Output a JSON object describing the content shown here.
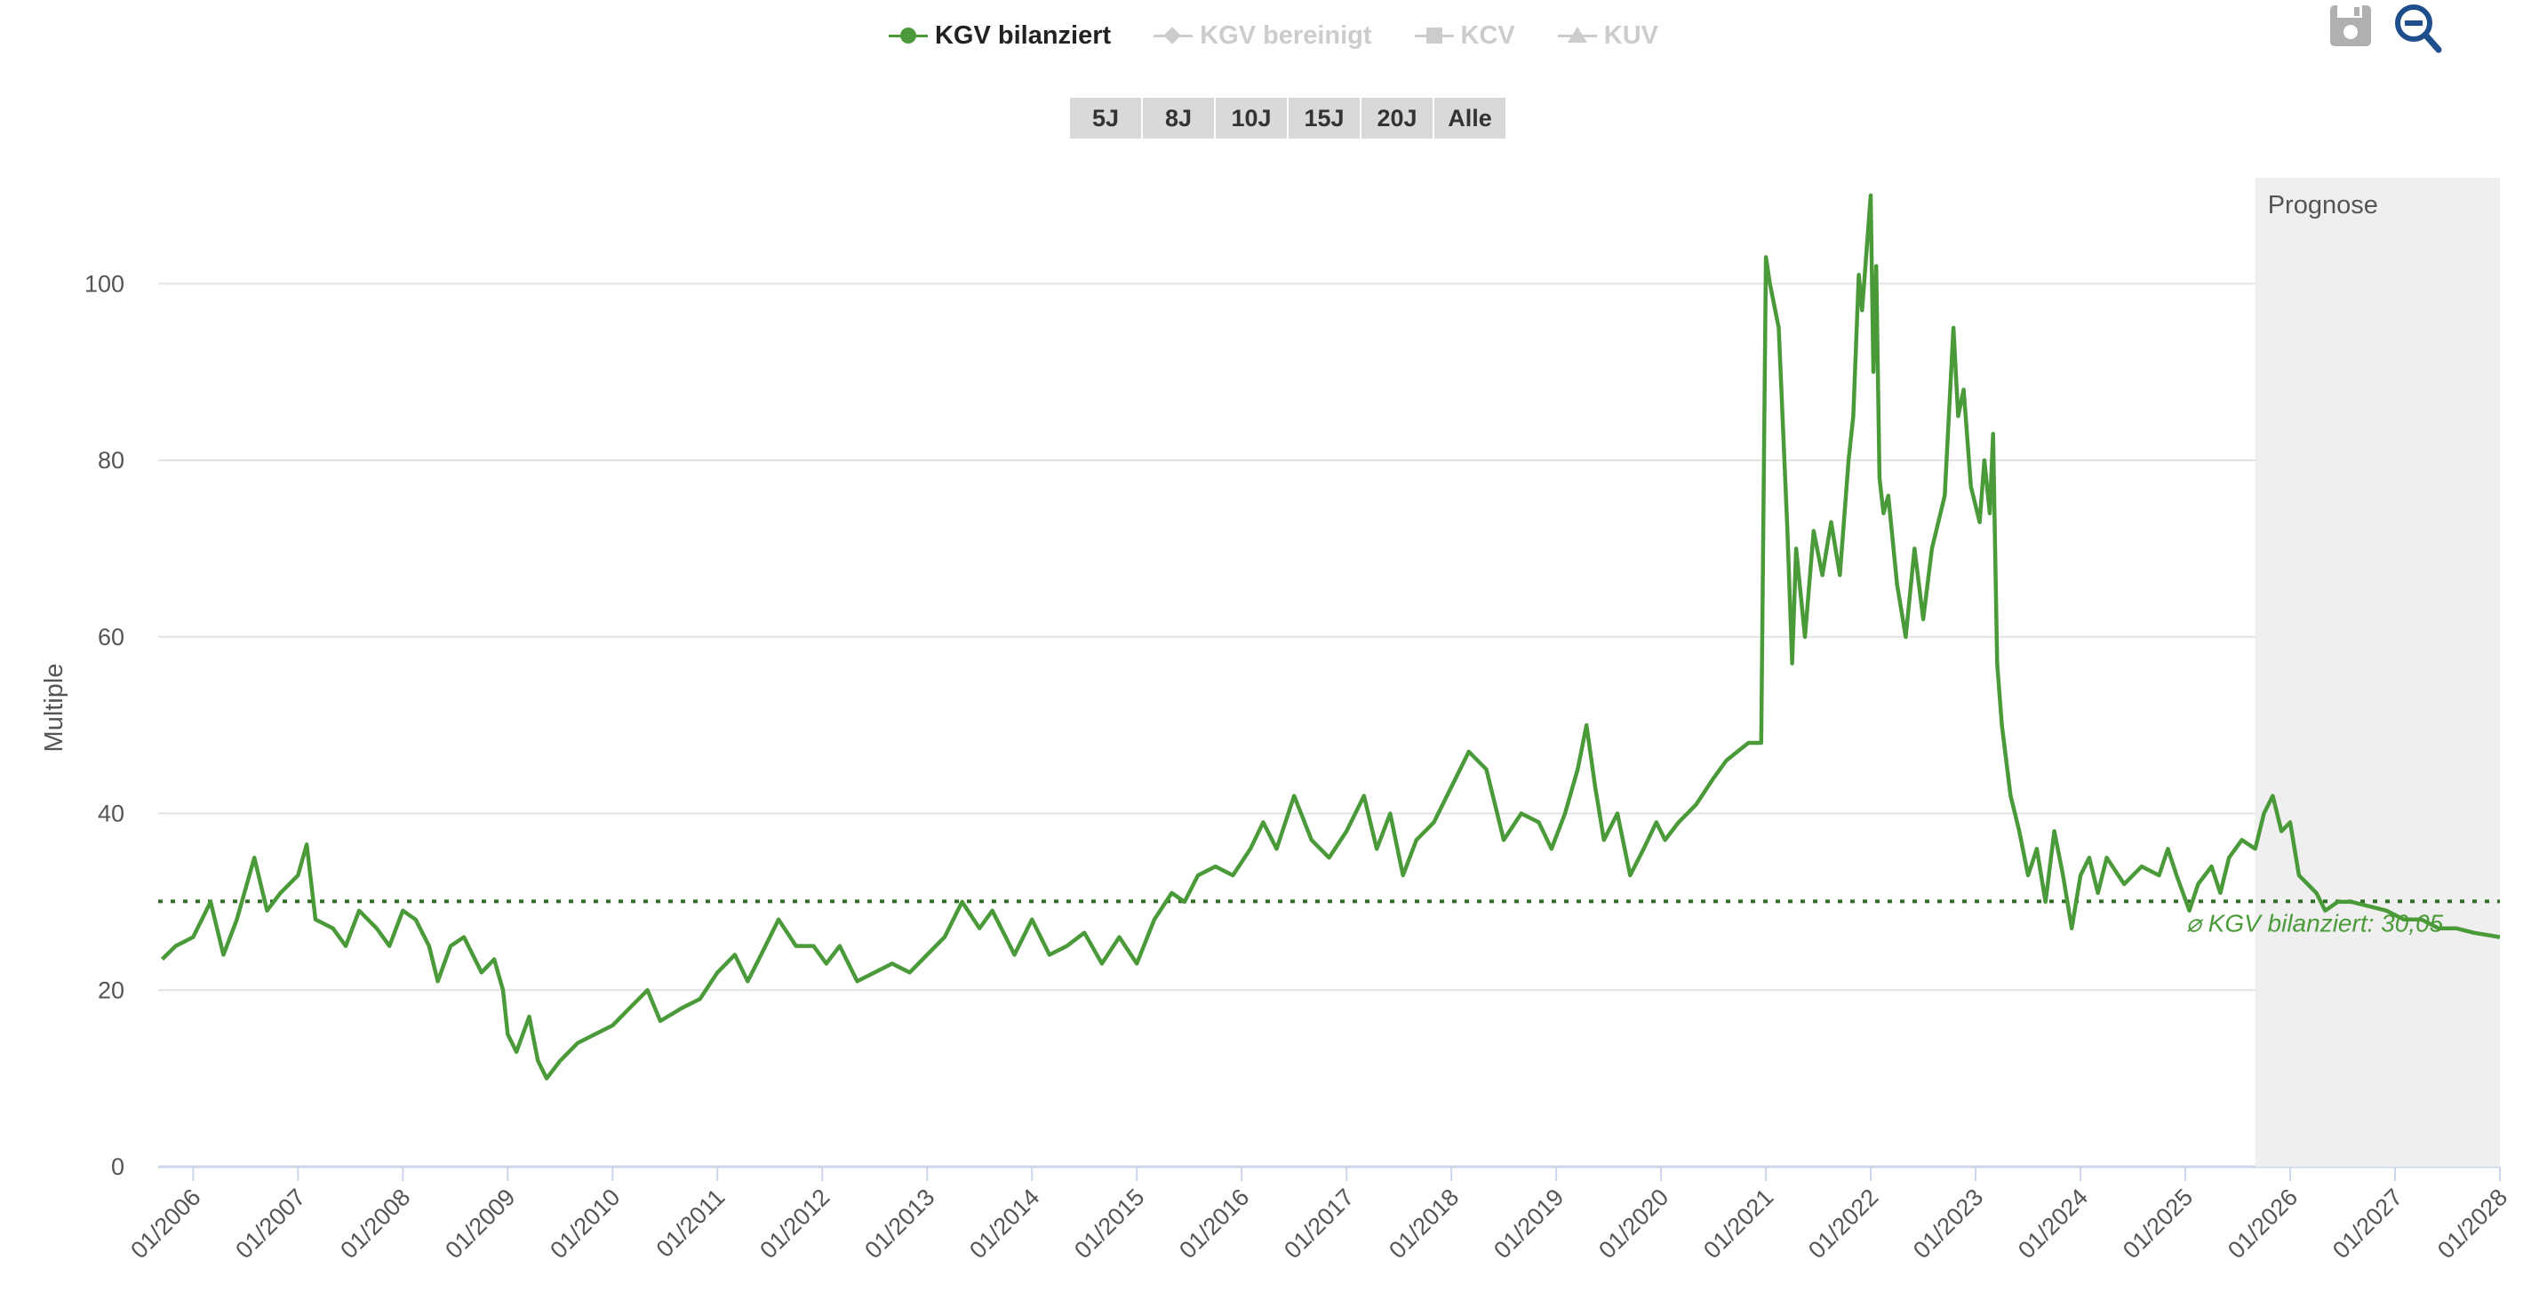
{
  "legend": {
    "items": [
      {
        "label": "KGV bilanziert",
        "active": true,
        "symbol": "circle"
      },
      {
        "label": "KGV bereinigt",
        "active": false,
        "symbol": "diamond"
      },
      {
        "label": "KCV",
        "active": false,
        "symbol": "square"
      },
      {
        "label": "KUV",
        "active": false,
        "symbol": "triangle"
      }
    ]
  },
  "range_buttons": [
    "5J",
    "8J",
    "10J",
    "15J",
    "20J",
    "Alle"
  ],
  "tools": {
    "save_icon": "floppy-disk-icon",
    "zoom_out_icon": "zoom-out-magnifier-icon"
  },
  "colors": {
    "series": "#4a9a3a",
    "forecast_band": "#efefef",
    "grid": "#e3e3e3",
    "active_icon": "#1f4e8c",
    "inactive_icon": "#b0b0b0"
  },
  "chart_data": {
    "type": "line",
    "ylabel": "Multiple",
    "ylim": [
      0,
      112
    ],
    "yticks": [
      0,
      20,
      40,
      60,
      80,
      100
    ],
    "xlim": [
      "2005-09",
      "2028-01"
    ],
    "xticks": [
      "01/2006",
      "01/2007",
      "01/2008",
      "01/2009",
      "01/2010",
      "01/2011",
      "01/2012",
      "01/2013",
      "01/2014",
      "01/2015",
      "01/2016",
      "01/2017",
      "01/2018",
      "01/2019",
      "01/2020",
      "01/2021",
      "01/2022",
      "01/2023",
      "01/2024",
      "01/2025",
      "01/2026",
      "01/2027",
      "01/2028"
    ],
    "grid": true,
    "forecast": {
      "label": "Prognose",
      "start": "2025-09"
    },
    "average": {
      "label": "⌀ KGV bilanziert: 30,05",
      "value": 30.05
    },
    "series": [
      {
        "name": "KGV bilanziert",
        "points": [
          [
            "2005-09-15",
            23.5
          ],
          [
            "2005-11-01",
            25
          ],
          [
            "2006-01-01",
            26
          ],
          [
            "2006-03-01",
            30
          ],
          [
            "2006-04-15",
            24
          ],
          [
            "2006-06-01",
            28
          ],
          [
            "2006-08-01",
            35
          ],
          [
            "2006-09-15",
            29
          ],
          [
            "2006-11-01",
            31
          ],
          [
            "2007-01-01",
            33
          ],
          [
            "2007-02-01",
            36.5
          ],
          [
            "2007-03-01",
            28
          ],
          [
            "2007-05-01",
            27
          ],
          [
            "2007-06-15",
            25
          ],
          [
            "2007-08-01",
            29
          ],
          [
            "2007-10-01",
            27
          ],
          [
            "2007-11-15",
            25
          ],
          [
            "2008-01-01",
            29
          ],
          [
            "2008-02-15",
            28
          ],
          [
            "2008-04-01",
            25
          ],
          [
            "2008-05-01",
            21
          ],
          [
            "2008-06-15",
            25
          ],
          [
            "2008-08-01",
            26
          ],
          [
            "2008-10-01",
            22
          ],
          [
            "2008-11-15",
            23.5
          ],
          [
            "2008-12-15",
            20
          ],
          [
            "2009-01-01",
            15
          ],
          [
            "2009-02-01",
            13
          ],
          [
            "2009-03-15",
            17
          ],
          [
            "2009-04-15",
            12
          ],
          [
            "2009-05-15",
            10
          ],
          [
            "2009-07-01",
            12
          ],
          [
            "2009-09-01",
            14
          ],
          [
            "2009-11-01",
            15
          ],
          [
            "2010-01-01",
            16
          ],
          [
            "2010-03-01",
            18
          ],
          [
            "2010-05-01",
            20
          ],
          [
            "2010-06-15",
            16.5
          ],
          [
            "2010-09-01",
            18
          ],
          [
            "2010-11-01",
            19
          ],
          [
            "2011-01-01",
            22
          ],
          [
            "2011-03-01",
            24
          ],
          [
            "2011-04-15",
            21
          ],
          [
            "2011-06-01",
            24
          ],
          [
            "2011-08-01",
            28
          ],
          [
            "2011-10-01",
            25
          ],
          [
            "2011-12-01",
            25
          ],
          [
            "2012-01-15",
            23
          ],
          [
            "2012-03-01",
            25
          ],
          [
            "2012-05-01",
            21
          ],
          [
            "2012-07-01",
            22
          ],
          [
            "2012-09-01",
            23
          ],
          [
            "2012-11-01",
            22
          ],
          [
            "2013-01-01",
            24
          ],
          [
            "2013-03-01",
            26
          ],
          [
            "2013-05-01",
            30
          ],
          [
            "2013-07-01",
            27
          ],
          [
            "2013-08-15",
            29
          ],
          [
            "2013-10-01",
            26
          ],
          [
            "2013-11-01",
            24
          ],
          [
            "2014-01-01",
            28
          ],
          [
            "2014-03-01",
            24
          ],
          [
            "2014-05-01",
            25
          ],
          [
            "2014-07-01",
            26.5
          ],
          [
            "2014-09-01",
            23
          ],
          [
            "2014-11-01",
            26
          ],
          [
            "2015-01-01",
            23
          ],
          [
            "2015-03-01",
            28
          ],
          [
            "2015-05-01",
            31
          ],
          [
            "2015-06-15",
            30
          ],
          [
            "2015-08-01",
            33
          ],
          [
            "2015-10-01",
            34
          ],
          [
            "2015-12-01",
            33
          ],
          [
            "2016-02-01",
            36
          ],
          [
            "2016-03-15",
            39
          ],
          [
            "2016-05-01",
            36
          ],
          [
            "2016-07-01",
            42
          ],
          [
            "2016-09-01",
            37
          ],
          [
            "2016-11-01",
            35
          ],
          [
            "2017-01-01",
            38
          ],
          [
            "2017-03-01",
            42
          ],
          [
            "2017-04-15",
            36
          ],
          [
            "2017-06-01",
            40
          ],
          [
            "2017-07-15",
            33
          ],
          [
            "2017-09-01",
            37
          ],
          [
            "2017-11-01",
            39
          ],
          [
            "2018-01-01",
            43
          ],
          [
            "2018-03-01",
            47
          ],
          [
            "2018-05-01",
            45
          ],
          [
            "2018-07-01",
            37
          ],
          [
            "2018-09-01",
            40
          ],
          [
            "2018-11-01",
            39
          ],
          [
            "2018-12-15",
            36
          ],
          [
            "2019-02-01",
            40
          ],
          [
            "2019-03-15",
            45
          ],
          [
            "2019-04-15",
            50
          ],
          [
            "2019-05-15",
            43
          ],
          [
            "2019-06-15",
            37
          ],
          [
            "2019-08-01",
            40
          ],
          [
            "2019-09-15",
            33
          ],
          [
            "2019-11-01",
            36
          ],
          [
            "2019-12-15",
            39
          ],
          [
            "2020-01-15",
            37
          ],
          [
            "2020-03-01",
            39
          ],
          [
            "2020-05-01",
            41
          ],
          [
            "2020-07-01",
            44
          ],
          [
            "2020-08-15",
            46
          ],
          [
            "2020-11-01",
            48
          ],
          [
            "2020-12-15",
            48
          ],
          [
            "2021-01-01",
            103
          ],
          [
            "2021-01-15",
            100
          ],
          [
            "2021-02-15",
            95
          ],
          [
            "2021-03-15",
            72
          ],
          [
            "2021-04-01",
            57
          ],
          [
            "2021-04-15",
            70
          ],
          [
            "2021-05-15",
            60
          ],
          [
            "2021-06-15",
            72
          ],
          [
            "2021-07-15",
            67
          ],
          [
            "2021-08-15",
            73
          ],
          [
            "2021-09-15",
            67
          ],
          [
            "2021-10-15",
            80
          ],
          [
            "2021-11-01",
            85
          ],
          [
            "2021-11-20",
            101
          ],
          [
            "2021-12-01",
            97
          ],
          [
            "2021-12-15",
            103
          ],
          [
            "2021-12-31",
            110
          ],
          [
            "2022-01-10",
            90
          ],
          [
            "2022-01-20",
            102
          ],
          [
            "2022-02-01",
            78
          ],
          [
            "2022-02-15",
            74
          ],
          [
            "2022-03-01",
            76
          ],
          [
            "2022-04-01",
            66
          ],
          [
            "2022-05-01",
            60
          ],
          [
            "2022-06-01",
            70
          ],
          [
            "2022-07-01",
            62
          ],
          [
            "2022-08-01",
            70
          ],
          [
            "2022-09-15",
            76
          ],
          [
            "2022-10-15",
            95
          ],
          [
            "2022-11-01",
            85
          ],
          [
            "2022-11-20",
            88
          ],
          [
            "2022-12-15",
            77
          ],
          [
            "2023-01-15",
            73
          ],
          [
            "2023-02-01",
            80
          ],
          [
            "2023-02-20",
            74
          ],
          [
            "2023-03-01",
            83
          ],
          [
            "2023-03-15",
            57
          ],
          [
            "2023-04-01",
            50
          ],
          [
            "2023-05-01",
            42
          ],
          [
            "2023-06-01",
            38
          ],
          [
            "2023-07-01",
            33
          ],
          [
            "2023-08-01",
            36
          ],
          [
            "2023-09-01",
            30
          ],
          [
            "2023-10-01",
            38
          ],
          [
            "2023-11-01",
            33
          ],
          [
            "2023-12-01",
            27
          ],
          [
            "2024-01-01",
            33
          ],
          [
            "2024-02-01",
            35
          ],
          [
            "2024-03-01",
            31
          ],
          [
            "2024-04-01",
            35
          ],
          [
            "2024-06-01",
            32
          ],
          [
            "2024-08-01",
            34
          ],
          [
            "2024-10-01",
            33
          ],
          [
            "2024-11-01",
            36
          ],
          [
            "2024-12-01",
            33
          ],
          [
            "2025-01-15",
            29
          ],
          [
            "2025-02-15",
            32
          ],
          [
            "2025-04-01",
            34
          ],
          [
            "2025-05-01",
            31
          ],
          [
            "2025-06-01",
            35
          ],
          [
            "2025-07-15",
            37
          ],
          [
            "2025-09-01",
            36
          ],
          [
            "2025-10-01",
            40
          ],
          [
            "2025-11-01",
            42
          ],
          [
            "2025-12-01",
            38
          ],
          [
            "2026-01-01",
            39
          ],
          [
            "2026-02-01",
            33
          ],
          [
            "2026-03-01",
            32
          ],
          [
            "2026-04-01",
            31
          ],
          [
            "2026-05-01",
            29
          ],
          [
            "2026-06-15",
            30
          ],
          [
            "2026-08-01",
            30
          ],
          [
            "2026-10-01",
            29.5
          ],
          [
            "2026-12-01",
            29
          ],
          [
            "2027-02-01",
            28
          ],
          [
            "2027-04-01",
            28
          ],
          [
            "2027-06-01",
            27
          ],
          [
            "2027-08-01",
            27
          ],
          [
            "2027-10-01",
            26.5
          ],
          [
            "2028-01-01",
            26
          ]
        ]
      }
    ]
  }
}
